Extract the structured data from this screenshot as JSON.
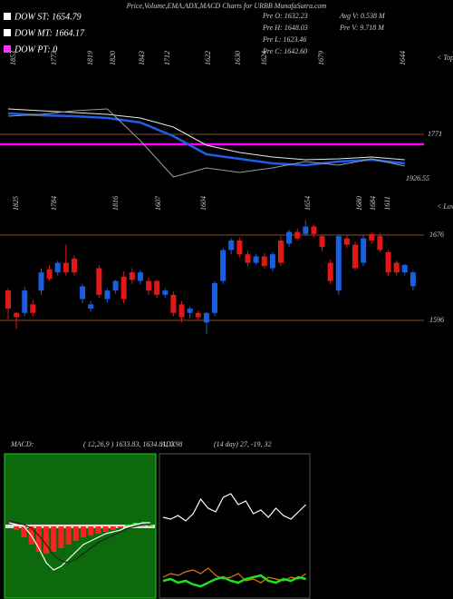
{
  "header": {
    "title": "Price,Volume,EMA,ADX,MACD Charts for URBB MunafaSutra.com",
    "legend": [
      {
        "text": "DOW ST: 1654.79",
        "color": "#ffffff"
      },
      {
        "text": "DOW MT: 1664.17",
        "color": "#ffffff"
      },
      {
        "text": "DOW PT: 0",
        "color": "#ff33ff"
      }
    ],
    "info": [
      "Pre  O: 1632.23",
      "Pre  H: 1648.03",
      "Pre  L: 1623.46",
      "Pre  C: 1642.60"
    ],
    "info2": [
      "Avg  V: 0.538  M",
      "Pre  V: 9.718  M"
    ]
  },
  "chart_data": [
    {
      "type": "line",
      "x": [
        0,
        4,
        8,
        12,
        16,
        20,
        24,
        28,
        32,
        36,
        40,
        44,
        48
      ],
      "ylim": [
        1600,
        1885
      ],
      "series": [
        {
          "color": "#1e5ee8",
          "values": [
            1840,
            1834,
            1831,
            1825,
            1810,
            1765,
            1705,
            1690,
            1675,
            1669,
            1681,
            1687,
            1675
          ]
        },
        {
          "color": "#e8e8e8",
          "values": [
            1855,
            1849,
            1843,
            1837,
            1825,
            1795,
            1735,
            1711,
            1696,
            1687,
            1690,
            1696,
            1687
          ]
        },
        {
          "color": "#9a9a9a",
          "values": [
            1831,
            1837,
            1849,
            1855,
            1750,
            1630,
            1660,
            1645,
            1660,
            1681,
            1669,
            1690,
            1666
          ]
        }
      ],
      "levels": [
        1771
      ],
      "level_color": "#8b4a2b",
      "pt_line": 1738,
      "pt_color": "#ff00ff",
      "annotation": "1926.55",
      "marker_label": "< Tops",
      "marker_texts": [
        "1853",
        "1773",
        "1819",
        "1820",
        "1843",
        "1712",
        "1622",
        "1630",
        "1624",
        "1679",
        "1644"
      ]
    },
    {
      "type": "candlestick",
      "ylim": [
        1573,
        1705
      ],
      "up_color": "#1a5fe0",
      "down_color": "#e01818",
      "open": [
        1624,
        1603,
        1603,
        1611,
        1624,
        1644,
        1641,
        1650,
        1654,
        1616,
        1607,
        1645,
        1616,
        1624,
        1637,
        1641,
        1633,
        1633,
        1633,
        1620,
        1620,
        1611,
        1603,
        1603,
        1594,
        1603,
        1633,
        1662,
        1671,
        1658,
        1650,
        1656,
        1645,
        1671,
        1668,
        1679,
        1677,
        1684,
        1675,
        1650,
        1624,
        1673,
        1667,
        1650,
        1677,
        1675,
        1660,
        1650,
        1641,
        1628
      ],
      "high": [
        1626,
        1604,
        1627,
        1615,
        1645,
        1648,
        1652,
        1667,
        1657,
        1630,
        1614,
        1648,
        1626,
        1634,
        1642,
        1645,
        1643,
        1636,
        1634,
        1626,
        1623,
        1614,
        1609,
        1605,
        1604,
        1633,
        1664,
        1673,
        1674,
        1661,
        1658,
        1659,
        1660,
        1675,
        1681,
        1682,
        1690,
        1686,
        1677,
        1653,
        1677,
        1676,
        1670,
        1676,
        1679,
        1678,
        1662,
        1652,
        1649,
        1643
      ],
      "low": [
        1597,
        1588,
        1600,
        1600,
        1620,
        1633,
        1638,
        1638,
        1638,
        1612,
        1604,
        1617,
        1613,
        1621,
        1612,
        1630,
        1630,
        1620,
        1617,
        1617,
        1600,
        1594,
        1598,
        1596,
        1583,
        1600,
        1630,
        1658,
        1655,
        1647,
        1648,
        1645,
        1642,
        1647,
        1665,
        1671,
        1675,
        1674,
        1661,
        1630,
        1620,
        1664,
        1643,
        1647,
        1668,
        1660,
        1638,
        1638,
        1638,
        1624
      ],
      "close": [
        1607,
        1599,
        1624,
        1603,
        1641,
        1635,
        1650,
        1641,
        1641,
        1628,
        1611,
        1620,
        1624,
        1633,
        1616,
        1634,
        1641,
        1624,
        1620,
        1624,
        1603,
        1599,
        1607,
        1599,
        1603,
        1631,
        1662,
        1671,
        1658,
        1650,
        1656,
        1647,
        1658,
        1650,
        1679,
        1673,
        1684,
        1677,
        1665,
        1633,
        1675,
        1667,
        1645,
        1673,
        1671,
        1662,
        1641,
        1641,
        1648,
        1641
      ],
      "levels": [
        1676,
        1596
      ],
      "level_color": "#8b4a2b",
      "marker_label": "< Lows",
      "marker_texts": [
        "1825",
        "1784",
        "1816",
        "1607",
        "1604",
        "1654",
        "1680",
        "1684",
        "1611"
      ]
    },
    {
      "type": "macd",
      "title": "MACD:",
      "subtitle": "( 12,26,9 ) 1633.83, 1634.81, 0.98",
      "ylim": [
        -40,
        40
      ],
      "histogram": [
        0,
        -2,
        -6,
        -10,
        -14,
        -15,
        -14,
        -12,
        -10,
        -8,
        -6,
        -5,
        -4,
        -3,
        -2,
        -1,
        1,
        2,
        2,
        1
      ],
      "series": [
        {
          "color": "#ffffff",
          "values": [
            2,
            1,
            0,
            -5,
            -12,
            -20,
            -24,
            -22,
            -18,
            -14,
            -10,
            -8,
            -6,
            -4,
            -3,
            -2,
            0,
            1,
            2,
            2
          ]
        },
        {
          "color": "#222222",
          "values": [
            3,
            2,
            1,
            -1,
            -5,
            -10,
            -16,
            -19,
            -20,
            -18,
            -15,
            -12,
            -9,
            -7,
            -5,
            -3,
            -1,
            0,
            1,
            1
          ]
        }
      ]
    },
    {
      "type": "adx",
      "title": "ADX",
      "subtitle": "(14 day) 27, -19, 32",
      "ylim": [
        0,
        80
      ],
      "series": [
        {
          "color": "#ffffff",
          "values": [
            45,
            44,
            46,
            43,
            47,
            55,
            50,
            48,
            56,
            58,
            52,
            54,
            47,
            49,
            45,
            50,
            46,
            44,
            48,
            52
          ]
        },
        {
          "color": "#e07a10",
          "values": [
            12,
            14,
            13,
            15,
            16,
            14,
            17,
            13,
            11,
            12,
            14,
            10,
            11,
            9,
            12,
            11,
            10,
            12,
            11,
            14
          ]
        },
        {
          "color": "#22dd22",
          "values": [
            10,
            11,
            9,
            10,
            8,
            7,
            9,
            11,
            12,
            10,
            9,
            11,
            12,
            13,
            10,
            9,
            11,
            10,
            12,
            11
          ]
        }
      ]
    }
  ]
}
